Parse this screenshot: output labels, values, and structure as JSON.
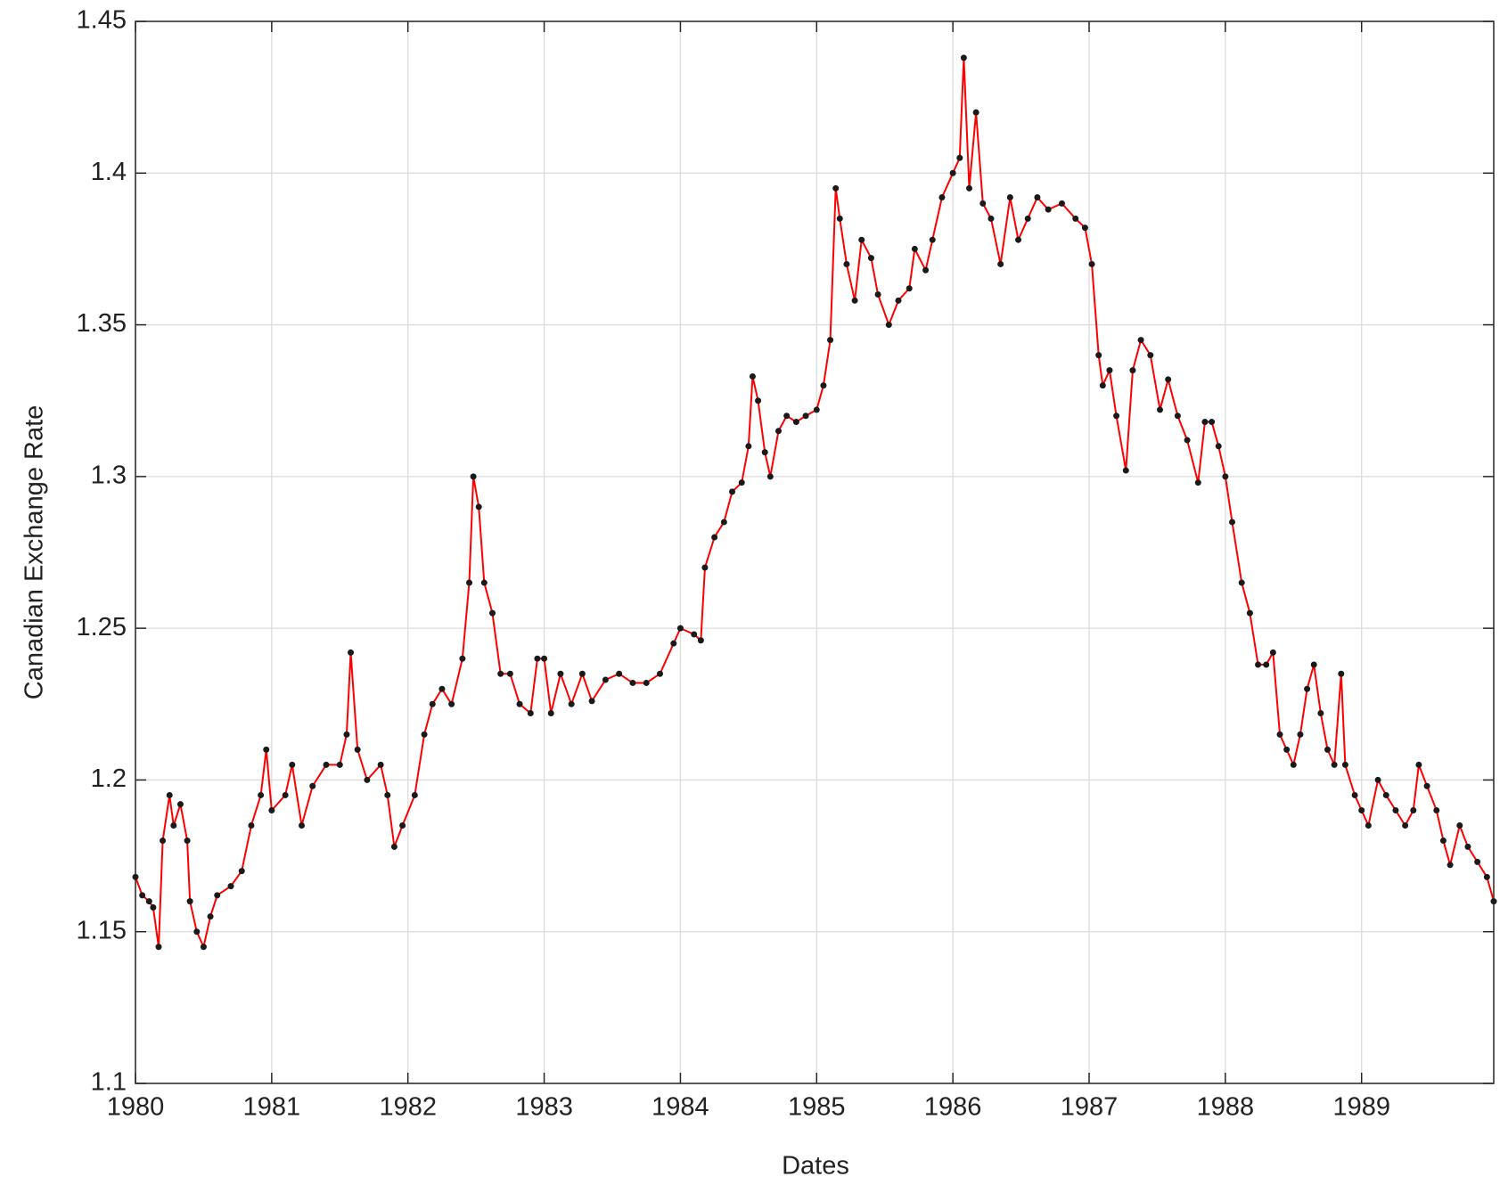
{
  "chart_data": {
    "type": "line",
    "xlabel": "Dates",
    "ylabel": "Canadian Exchange Rate",
    "xlim": [
      1980,
      1989.97
    ],
    "xticks": [
      1980,
      1981,
      1982,
      1983,
      1984,
      1985,
      1986,
      1987,
      1988,
      1989
    ],
    "ylim": [
      1.1,
      1.45
    ],
    "yticks": [
      1.1,
      1.15,
      1.2,
      1.25,
      1.3,
      1.35,
      1.4,
      1.45
    ],
    "grid": true,
    "series": [
      {
        "color": "#ff0000",
        "marker_color": "#1a1a1a",
        "x": [
          1980.0,
          1980.05,
          1980.1,
          1980.13,
          1980.17,
          1980.2,
          1980.25,
          1980.28,
          1980.33,
          1980.38,
          1980.4,
          1980.45,
          1980.5,
          1980.55,
          1980.6,
          1980.7,
          1980.78,
          1980.85,
          1980.92,
          1980.96,
          1981.0,
          1981.1,
          1981.15,
          1981.22,
          1981.3,
          1981.4,
          1981.5,
          1981.55,
          1981.58,
          1981.63,
          1981.7,
          1981.8,
          1981.85,
          1981.9,
          1981.96,
          1982.05,
          1982.12,
          1982.18,
          1982.25,
          1982.32,
          1982.4,
          1982.45,
          1982.48,
          1982.52,
          1982.56,
          1982.62,
          1982.68,
          1982.75,
          1982.82,
          1982.9,
          1982.95,
          1983.0,
          1983.05,
          1983.12,
          1983.2,
          1983.28,
          1983.35,
          1983.45,
          1983.55,
          1983.65,
          1983.75,
          1983.85,
          1983.95,
          1984.0,
          1984.1,
          1984.15,
          1984.18,
          1984.25,
          1984.32,
          1984.38,
          1984.45,
          1984.5,
          1984.53,
          1984.57,
          1984.62,
          1984.66,
          1984.72,
          1984.78,
          1984.85,
          1984.92,
          1985.0,
          1985.05,
          1985.1,
          1985.14,
          1985.17,
          1985.22,
          1985.28,
          1985.33,
          1985.4,
          1985.45,
          1985.53,
          1985.6,
          1985.68,
          1985.72,
          1985.8,
          1985.85,
          1985.92,
          1986.0,
          1986.05,
          1986.08,
          1986.12,
          1986.17,
          1986.22,
          1986.28,
          1986.35,
          1986.42,
          1986.48,
          1986.55,
          1986.62,
          1986.7,
          1986.8,
          1986.9,
          1986.97,
          1987.02,
          1987.07,
          1987.1,
          1987.15,
          1987.2,
          1987.27,
          1987.32,
          1987.38,
          1987.45,
          1987.52,
          1987.58,
          1987.65,
          1987.72,
          1987.8,
          1987.85,
          1987.9,
          1987.95,
          1988.0,
          1988.05,
          1988.12,
          1988.18,
          1988.24,
          1988.3,
          1988.35,
          1988.4,
          1988.45,
          1988.5,
          1988.55,
          1988.6,
          1988.65,
          1988.7,
          1988.75,
          1988.8,
          1988.85,
          1988.88,
          1988.95,
          1989.0,
          1989.05,
          1989.12,
          1989.18,
          1989.25,
          1989.32,
          1989.38,
          1989.42,
          1989.48,
          1989.55,
          1989.6,
          1989.65,
          1989.72,
          1989.78,
          1989.85,
          1989.92,
          1989.97
        ],
        "values": [
          1.168,
          1.162,
          1.16,
          1.158,
          1.145,
          1.18,
          1.195,
          1.185,
          1.192,
          1.18,
          1.16,
          1.15,
          1.145,
          1.155,
          1.162,
          1.165,
          1.17,
          1.185,
          1.195,
          1.21,
          1.19,
          1.195,
          1.205,
          1.185,
          1.198,
          1.205,
          1.205,
          1.215,
          1.242,
          1.21,
          1.2,
          1.205,
          1.195,
          1.178,
          1.185,
          1.195,
          1.215,
          1.225,
          1.23,
          1.225,
          1.24,
          1.265,
          1.3,
          1.29,
          1.265,
          1.255,
          1.235,
          1.235,
          1.225,
          1.222,
          1.24,
          1.24,
          1.222,
          1.235,
          1.225,
          1.235,
          1.226,
          1.233,
          1.235,
          1.232,
          1.232,
          1.235,
          1.245,
          1.25,
          1.248,
          1.246,
          1.27,
          1.28,
          1.285,
          1.295,
          1.298,
          1.31,
          1.333,
          1.325,
          1.308,
          1.3,
          1.315,
          1.32,
          1.318,
          1.32,
          1.322,
          1.33,
          1.345,
          1.395,
          1.385,
          1.37,
          1.358,
          1.378,
          1.372,
          1.36,
          1.35,
          1.358,
          1.362,
          1.375,
          1.368,
          1.378,
          1.392,
          1.4,
          1.405,
          1.438,
          1.395,
          1.42,
          1.39,
          1.385,
          1.37,
          1.392,
          1.378,
          1.385,
          1.392,
          1.388,
          1.39,
          1.385,
          1.382,
          1.37,
          1.34,
          1.33,
          1.335,
          1.32,
          1.302,
          1.335,
          1.345,
          1.34,
          1.322,
          1.332,
          1.32,
          1.312,
          1.298,
          1.318,
          1.318,
          1.31,
          1.3,
          1.285,
          1.265,
          1.255,
          1.238,
          1.238,
          1.242,
          1.215,
          1.21,
          1.205,
          1.215,
          1.23,
          1.238,
          1.222,
          1.21,
          1.205,
          1.235,
          1.205,
          1.195,
          1.19,
          1.185,
          1.2,
          1.195,
          1.19,
          1.185,
          1.19,
          1.205,
          1.198,
          1.19,
          1.18,
          1.172,
          1.185,
          1.178,
          1.173,
          1.168,
          1.16
        ]
      }
    ]
  }
}
